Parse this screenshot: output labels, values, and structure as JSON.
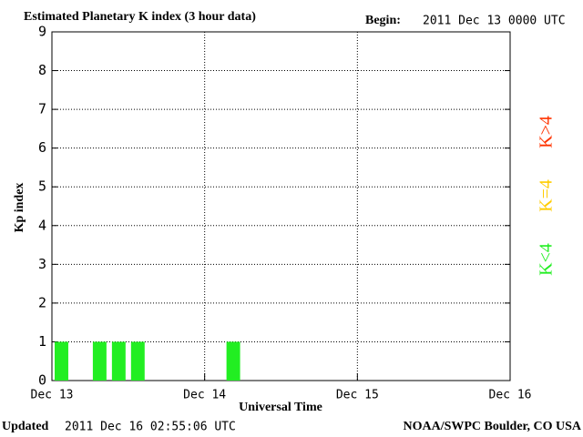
{
  "chart_data": {
    "type": "bar",
    "title": "Estimated Planetary K index (3 hour data)",
    "begin_label": "Begin:",
    "begin": "2011 Dec 13 0000 UTC",
    "y_label": "Kp index",
    "x_label": "Universal Time",
    "updated_label": "Updated",
    "updated": "2011 Dec 16 02:55:06 UTC",
    "source": "NOAA/SWPC Boulder, CO USA",
    "x": [
      1.5,
      4.5,
      7.5,
      10.5,
      13.5,
      16.5,
      19.5,
      22.5,
      25.5,
      28.5
    ],
    "values": [
      1,
      0,
      1,
      1,
      1,
      0,
      0,
      0,
      0,
      1
    ],
    "bar_width": 3,
    "color": "#22ee22",
    "legend": [
      {
        "name": "K<4",
        "color": "#22ee22"
      },
      {
        "name": "K=4",
        "color": "#ffcc00"
      },
      {
        "name": "K>4",
        "color": "#ff3300"
      }
    ],
    "xlim": [
      0,
      72
    ],
    "xticks": [
      {
        "value": 0,
        "label": "Dec 13"
      },
      {
        "value": 24,
        "label": "Dec 14"
      },
      {
        "value": 48,
        "label": "Dec 15"
      },
      {
        "value": 72,
        "label": "Dec 16"
      }
    ],
    "ylim": [
      0,
      9
    ],
    "yticks": [
      0,
      1,
      2,
      3,
      4,
      5,
      6,
      7,
      8,
      9
    ],
    "grid": true
  }
}
